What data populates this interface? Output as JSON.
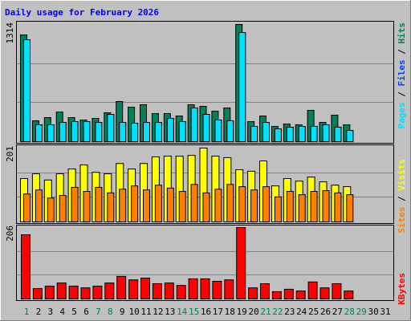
{
  "title": "Daily usage for February 2026",
  "legend_separator": " / ",
  "chart_data": [
    {
      "type": "bar",
      "ylim": [
        0,
        1314
      ],
      "yticks": [
        1314
      ],
      "series": [
        {
          "name": "Hits",
          "color": "#00805c",
          "values": [
            1197,
            234,
            270,
            333,
            270,
            243,
            261,
            324,
            450,
            387,
            414,
            315,
            315,
            288,
            414,
            396,
            342,
            378,
            1314,
            225,
            288,
            171,
            198,
            189,
            351,
            216,
            297,
            189,
            null,
            null,
            null
          ]
        },
        {
          "name": "Files",
          "color": "#0040ff",
          "values": [
            1143,
            189,
            189,
            216,
            225,
            225,
            216,
            306,
            216,
            207,
            216,
            216,
            261,
            225,
            378,
            306,
            243,
            234,
            1224,
            171,
            216,
            144,
            162,
            171,
            171,
            189,
            162,
            126,
            null,
            null,
            null
          ]
        },
        {
          "name": "Pages",
          "color": "#00e0ff",
          "values": [
            1143,
            189,
            189,
            216,
            225,
            225,
            216,
            306,
            216,
            207,
            216,
            216,
            261,
            225,
            378,
            306,
            243,
            234,
            1224,
            171,
            216,
            144,
            162,
            171,
            171,
            189,
            162,
            126,
            null,
            null,
            null
          ]
        }
      ]
    },
    {
      "type": "bar",
      "ylim": [
        0,
        201
      ],
      "yticks": [
        201
      ],
      "series": [
        {
          "name": "Visits",
          "color": "#ffff00",
          "values": [
            118,
            131,
            114,
            131,
            144,
            155,
            135,
            131,
            159,
            144,
            159,
            177,
            179,
            179,
            181,
            201,
            179,
            175,
            142,
            138,
            166,
            98,
            118,
            111,
            122,
            109,
            100,
            96,
            null,
            null,
            null
          ]
        },
        {
          "name": "Sites",
          "color": "#ff8000",
          "values": [
            76,
            87,
            65,
            72,
            94,
            83,
            94,
            79,
            89,
            98,
            87,
            100,
            92,
            83,
            102,
            79,
            89,
            102,
            96,
            87,
            96,
            68,
            83,
            74,
            83,
            85,
            79,
            74,
            null,
            null,
            null
          ]
        }
      ]
    },
    {
      "type": "bar",
      "ylim": [
        0,
        206
      ],
      "yticks": [
        206
      ],
      "series": [
        {
          "name": "KBytes",
          "color": "#ff0000",
          "values": [
            185,
            30,
            37,
            46,
            37,
            32,
            37,
            46,
            65,
            55,
            60,
            44,
            46,
            39,
            58,
            58,
            51,
            55,
            206,
            32,
            44,
            21,
            28,
            23,
            49,
            32,
            44,
            23,
            null,
            null,
            null
          ]
        }
      ],
      "categories": [
        "1",
        "2",
        "3",
        "4",
        "5",
        "6",
        "7",
        "8",
        "9",
        "10",
        "11",
        "12",
        "13",
        "14",
        "15",
        "16",
        "17",
        "18",
        "19",
        "20",
        "21",
        "22",
        "23",
        "24",
        "25",
        "26",
        "27",
        "28",
        "29",
        "30",
        "31"
      ],
      "category_colors": [
        "#00805c",
        "#000000",
        "#000000",
        "#000000",
        "#000000",
        "#000000",
        "#00805c",
        "#00805c",
        "#000000",
        "#000000",
        "#000000",
        "#000000",
        "#000000",
        "#00805c",
        "#00805c",
        "#000000",
        "#000000",
        "#000000",
        "#000000",
        "#000000",
        "#00805c",
        "#00805c",
        "#000000",
        "#000000",
        "#000000",
        "#000000",
        "#000000",
        "#00805c",
        "#00805c",
        "#000000",
        "#000000"
      ]
    }
  ]
}
